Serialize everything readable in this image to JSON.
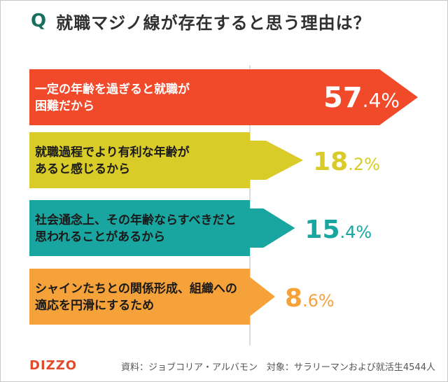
{
  "question": {
    "mark": "Q",
    "text": "就職マジノ線が存在すると思う理由は？"
  },
  "chart_data": {
    "type": "bar",
    "orientation": "horizontal",
    "title": "就職マジノ線が存在すると思う理由は？",
    "unit": "%",
    "xlim": [
      0,
      60
    ],
    "categories": [
      [
        "一定の年齢を過ぎると就職が",
        "困難だから"
      ],
      [
        "就職過程でより有利な年齢が",
        "あると感じるから"
      ],
      [
        "社会通念上、その年齢ならすべきだと",
        "思われることがあるから"
      ],
      [
        "シャインたちとの関係形成、組織への",
        "適応を円滑にするため"
      ]
    ],
    "values": [
      57.4,
      18.2,
      15.4,
      8.6
    ],
    "value_labels": [
      {
        "int": "57",
        "dec": ".4%"
      },
      {
        "int": "18",
        "dec": ".2%"
      },
      {
        "int": "15",
        "dec": ".4%"
      },
      {
        "int": "8",
        "dec": ".6%"
      }
    ],
    "colors": [
      "#f04a2a",
      "#d9cb28",
      "#1aa6a0",
      "#f5a23a"
    ],
    "value_colors": [
      "#ffffff",
      "#d9cb28",
      "#1aa6a0",
      "#f5a23a"
    ]
  },
  "footer": {
    "logo": "DIZZO",
    "source": "資料：ジョブコリア・アルバモン　対象：サラリーマンおよび就活生4544人"
  }
}
